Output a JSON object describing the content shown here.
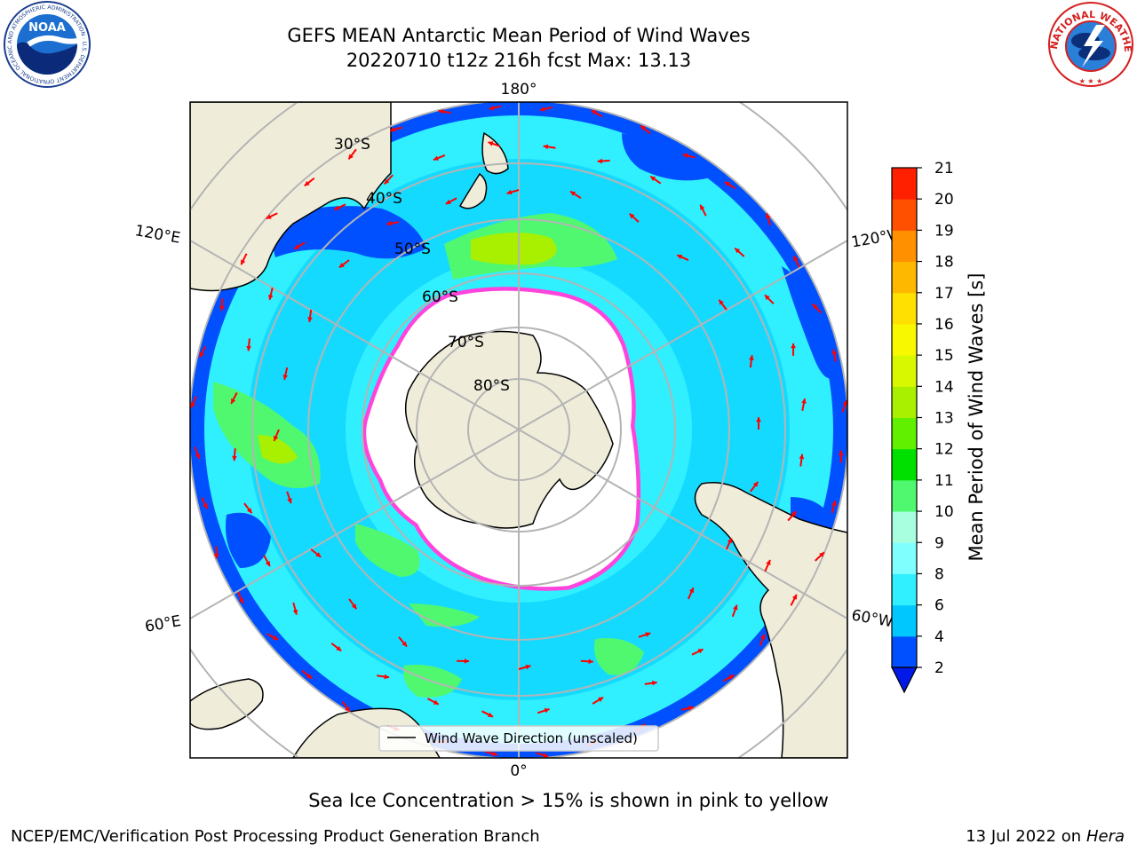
{
  "header": {
    "title_line1": "GEFS MEAN Antarctic Mean Period of Wind Waves",
    "title_line2": "20220710 t12z 216h fcst   Max: 13.13"
  },
  "logos": {
    "noaa": {
      "inner_text": "NOAA",
      "ring_text": "NATIONAL OCEANIC AND ATMOSPHERIC ADMINISTRATION · U.S. DEPARTMENT OF COMMERCE ·"
    },
    "nws": {
      "ring_text": "NATIONAL WEATHER SERVICE"
    }
  },
  "map": {
    "projection": "south-polar-stereographic",
    "longitude_labels": {
      "top": "180°",
      "bottom": "0°",
      "left_upper": "120°E",
      "left_lower": "60°E",
      "right_upper": "120°W",
      "right_lower": "60°W"
    },
    "latitude_labels": [
      "30°S",
      "40°S",
      "50°S",
      "60°S",
      "70°S",
      "80°S"
    ],
    "legend_label": "Wind Wave Direction (unscaled)",
    "colors": {
      "land": "#efedda",
      "ice": "#ffffff",
      "grid": "#b4b4b4",
      "arrow": "#ff0000",
      "ice_edge": "#ff44dd"
    }
  },
  "colorbar": {
    "label": "Mean Period of Wind Waves [s]",
    "ticks": [
      "2",
      "4",
      "6",
      "8",
      "9",
      "10",
      "11",
      "12",
      "13",
      "14",
      "15",
      "16",
      "17",
      "18",
      "19",
      "20",
      "21"
    ],
    "colors": [
      "#0050ff",
      "#00c8ff",
      "#30f0ff",
      "#80ffff",
      "#a8ffe0",
      "#50f870",
      "#00e000",
      "#60f000",
      "#a8f000",
      "#d8f800",
      "#f8f800",
      "#ffe000",
      "#ffb800",
      "#ff9000",
      "#ff5000",
      "#ff2000"
    ],
    "under_color": "#0018e8"
  },
  "caption": "Sea Ice Concentration > 15% is shown in pink to yellow",
  "footer": {
    "left": "NCEP/EMC/Verification Post Processing Product Generation Branch",
    "right_date": "13 Jul 2022 on ",
    "right_host": "Hera"
  }
}
